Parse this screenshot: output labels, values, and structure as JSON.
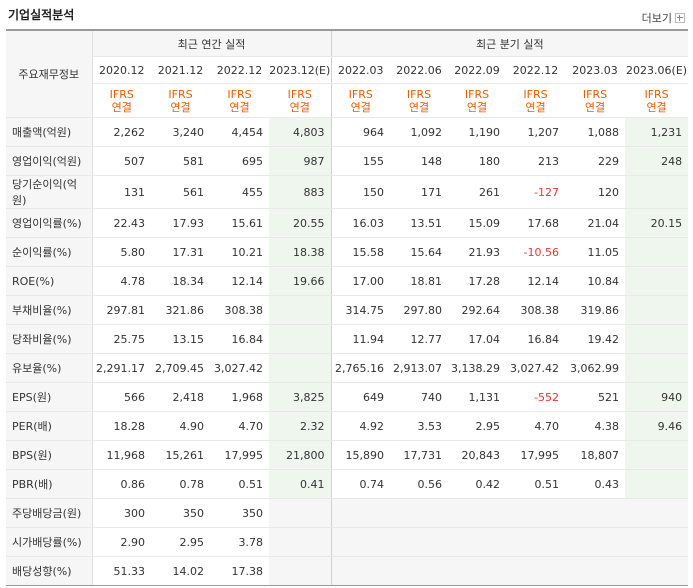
{
  "title": "기업실적분석",
  "more_label": "더보기",
  "header": {
    "corner_label": "주요재무정보",
    "annual_group": "최근 연간 실적",
    "quarter_group": "최근 분기 실적",
    "periods": [
      "2020.12",
      "2021.12",
      "2022.12",
      "2023.12(E)",
      "2022.03",
      "2022.06",
      "2022.09",
      "2022.12",
      "2023.03",
      "2023.06(E)"
    ],
    "basis_line1": "IFRS",
    "basis_line2": "연결"
  },
  "rows": [
    {
      "label": "매출액(억원)",
      "values": [
        "2,262",
        "3,240",
        "4,454",
        "4,803",
        "964",
        "1,092",
        "1,190",
        "1,207",
        "1,088",
        "1,231"
      ]
    },
    {
      "label": "영업이익(억원)",
      "values": [
        "507",
        "581",
        "695",
        "987",
        "155",
        "148",
        "180",
        "213",
        "229",
        "248"
      ]
    },
    {
      "label": "당기순이익(억원)",
      "values": [
        "131",
        "561",
        "455",
        "883",
        "150",
        "171",
        "261",
        "-127",
        "120",
        ""
      ]
    },
    {
      "label": "영업이익률(%)",
      "values": [
        "22.43",
        "17.93",
        "15.61",
        "20.55",
        "16.03",
        "13.51",
        "15.09",
        "17.68",
        "21.04",
        "20.15"
      ]
    },
    {
      "label": "순이익률(%)",
      "values": [
        "5.80",
        "17.31",
        "10.21",
        "18.38",
        "15.58",
        "15.64",
        "21.93",
        "-10.56",
        "11.05",
        ""
      ]
    },
    {
      "label": "ROE(%)",
      "values": [
        "4.78",
        "18.34",
        "12.14",
        "19.66",
        "17.00",
        "18.81",
        "17.28",
        "12.14",
        "10.84",
        ""
      ]
    },
    {
      "label": "부채비율(%)",
      "values": [
        "297.81",
        "321.86",
        "308.38",
        "",
        "314.75",
        "297.80",
        "292.64",
        "308.38",
        "319.86",
        ""
      ]
    },
    {
      "label": "당좌비율(%)",
      "values": [
        "25.75",
        "13.15",
        "16.84",
        "",
        "11.94",
        "12.77",
        "17.04",
        "16.84",
        "19.42",
        ""
      ]
    },
    {
      "label": "유보율(%)",
      "values": [
        "2,291.17",
        "2,709.45",
        "3,027.42",
        "",
        "2,765.16",
        "2,913.07",
        "3,138.29",
        "3,027.42",
        "3,062.99",
        ""
      ]
    },
    {
      "label": "EPS(원)",
      "values": [
        "566",
        "2,418",
        "1,968",
        "3,825",
        "649",
        "740",
        "1,131",
        "-552",
        "521",
        "940"
      ]
    },
    {
      "label": "PER(배)",
      "values": [
        "18.28",
        "4.90",
        "4.70",
        "2.32",
        "4.92",
        "3.53",
        "2.95",
        "4.70",
        "4.38",
        "9.46"
      ]
    },
    {
      "label": "BPS(원)",
      "values": [
        "11,968",
        "15,261",
        "17,995",
        "21,800",
        "15,890",
        "17,731",
        "20,843",
        "17,995",
        "18,807",
        ""
      ]
    },
    {
      "label": "PBR(배)",
      "values": [
        "0.86",
        "0.78",
        "0.51",
        "0.41",
        "0.74",
        "0.56",
        "0.42",
        "0.51",
        "0.43",
        ""
      ]
    },
    {
      "label": "주당배당금(원)",
      "values": [
        "300",
        "350",
        "350",
        "",
        "",
        "",
        "",
        "",
        "",
        ""
      ]
    },
    {
      "label": "시가배당률(%)",
      "values": [
        "2.90",
        "2.95",
        "3.78",
        "",
        "",
        "",
        "",
        "",
        "",
        ""
      ]
    },
    {
      "label": "배당성향(%)",
      "values": [
        "51.33",
        "14.02",
        "17.38",
        "",
        "",
        "",
        "",
        "",
        "",
        ""
      ]
    }
  ],
  "colors": {
    "accent": "#ee5a00",
    "negative": "#e33333",
    "estimate_bg": "#eef6ee"
  }
}
